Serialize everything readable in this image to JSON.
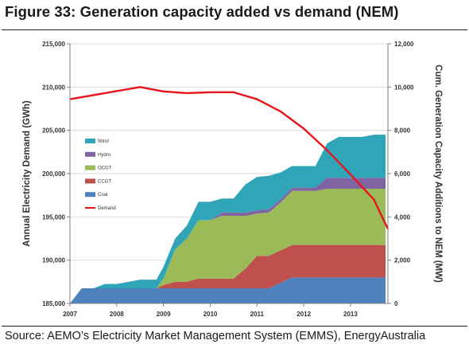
{
  "header": {
    "title": "Figure 33: Generation capacity added vs demand (NEM)"
  },
  "footer": {
    "source": "Source:  AEMO’s Electricity Market Management System (EMMS), EnergyAustralia"
  },
  "chart_data": {
    "type": "area",
    "title": "Figure 33: Generation capacity added vs demand (NEM)",
    "ylabel_left": "Annual Electricity Demand (GWh)",
    "ylabel_right": "Cum. Generation Capacity Additions to NEM (MW)",
    "xlim": [
      2007,
      2013.8
    ],
    "ylim_left": [
      185000,
      215000
    ],
    "ylim_right": [
      0,
      12000
    ],
    "xticks": [
      {
        "value": 2007,
        "label": "2007"
      },
      {
        "value": 2008,
        "label": "2008"
      },
      {
        "value": 2009,
        "label": "2009"
      },
      {
        "value": 2010,
        "label": "2010"
      },
      {
        "value": 2011,
        "label": "2011"
      },
      {
        "value": 2012,
        "label": "2012"
      },
      {
        "value": 2013,
        "label": "2013"
      }
    ],
    "yticks_left": [
      {
        "value": 185000,
        "label": "185,000"
      },
      {
        "value": 190000,
        "label": "190,000"
      },
      {
        "value": 195000,
        "label": "195,000"
      },
      {
        "value": 200000,
        "label": "200,000"
      },
      {
        "value": 205000,
        "label": "205,000"
      },
      {
        "value": 210000,
        "label": "210,000"
      },
      {
        "value": 215000,
        "label": "215,000"
      }
    ],
    "yticks_right": [
      {
        "value": 0,
        "label": "0"
      },
      {
        "value": 2000,
        "label": "2,000"
      },
      {
        "value": 4000,
        "label": "4,000"
      },
      {
        "value": 6000,
        "label": "6,000"
      },
      {
        "value": 8000,
        "label": "8,000"
      },
      {
        "value": 10000,
        "label": "10,000"
      },
      {
        "value": 12000,
        "label": "12,000"
      }
    ],
    "x": [
      2007.0,
      2007.25,
      2007.5,
      2007.75,
      2008.0,
      2008.25,
      2008.5,
      2008.75,
      2008.85,
      2009.0,
      2009.25,
      2009.5,
      2009.75,
      2010.0,
      2010.25,
      2010.5,
      2010.75,
      2011.0,
      2011.25,
      2011.5,
      2011.75,
      2012.0,
      2012.25,
      2012.5,
      2012.75,
      2013.0,
      2013.25,
      2013.5,
      2013.75
    ],
    "stack_order": [
      "Coal",
      "CCGT",
      "OCGT",
      "Hydro",
      "Wind"
    ],
    "series": [
      {
        "name": "Coal",
        "axis": "right",
        "color": "#4f81bd",
        "values": [
          0,
          700,
          700,
          700,
          700,
          700,
          700,
          700,
          700,
          700,
          700,
          700,
          700,
          700,
          700,
          700,
          700,
          700,
          700,
          950,
          1200,
          1200,
          1200,
          1200,
          1200,
          1200,
          1200,
          1200,
          1200
        ]
      },
      {
        "name": "CCGT",
        "axis": "right",
        "color": "#c0504d",
        "values": [
          0,
          0,
          0,
          0,
          0,
          0,
          0,
          0,
          0,
          150,
          300,
          300,
          450,
          450,
          450,
          450,
          900,
          1500,
          1500,
          1500,
          1500,
          1500,
          1500,
          1500,
          1500,
          1500,
          1500,
          1500,
          1500
        ]
      },
      {
        "name": "OCGT",
        "axis": "right",
        "color": "#9bbb59",
        "values": [
          0,
          0,
          0,
          0,
          0,
          0,
          0,
          0,
          0,
          300,
          1500,
          2000,
          2700,
          2700,
          2900,
          2900,
          2450,
          1950,
          2000,
          2200,
          2500,
          2500,
          2500,
          2600,
          2600,
          2600,
          2600,
          2600,
          2600
        ]
      },
      {
        "name": "Hydro",
        "axis": "right",
        "color": "#8064a2",
        "values": [
          0,
          0,
          0,
          0,
          0,
          0,
          0,
          0,
          0,
          0,
          0,
          0,
          0,
          0,
          150,
          150,
          150,
          150,
          150,
          150,
          150,
          150,
          150,
          500,
          500,
          500,
          500,
          500,
          500
        ]
      },
      {
        "name": "Wind",
        "axis": "right",
        "color": "#31a5b8",
        "values": [
          0,
          0,
          0,
          200,
          200,
          300,
          400,
          400,
          400,
          550,
          500,
          600,
          850,
          850,
          650,
          650,
          1300,
          1550,
          1550,
          1250,
          1000,
          1000,
          1000,
          1600,
          1900,
          1900,
          1900,
          2000,
          2000
        ]
      },
      {
        "name": "Demand",
        "axis": "left",
        "color": "#e8141c",
        "type": "line",
        "x": [
          2007.0,
          2008.5,
          2009.0,
          2009.5,
          2010.0,
          2010.5,
          2011.0,
          2011.5,
          2012.0,
          2012.5,
          2013.0,
          2013.5,
          2013.8
        ],
        "values": [
          208600,
          210000,
          209500,
          209300,
          209400,
          209400,
          208600,
          207200,
          205200,
          202700,
          199900,
          197000,
          193600
        ]
      }
    ],
    "legend_placement": "upper-left inside plot",
    "grid": true
  }
}
